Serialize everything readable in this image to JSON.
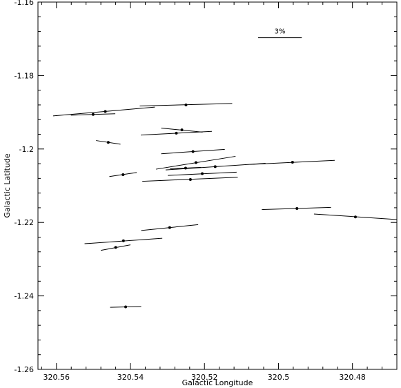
{
  "chart_data": {
    "type": "scatter",
    "xlabel": "Galactic Longitude",
    "ylabel": "Galactic Latitude",
    "xlim": [
      320.565,
      320.468
    ],
    "ylim": [
      -1.26,
      -1.16
    ],
    "x_ticks": [
      320.56,
      320.54,
      320.52,
      320.5,
      320.48
    ],
    "x_tick_labels": [
      "320.56",
      "320.54",
      "320.52",
      "320.5",
      "320.48"
    ],
    "y_ticks": [
      -1.26,
      -1.24,
      -1.22,
      -1.2,
      -1.18,
      -1.16
    ],
    "y_tick_labels": [
      "-1.26",
      "-1.24",
      "-1.22",
      "-1.2",
      "-1.18",
      "-1.16"
    ],
    "scale_bar": {
      "label": "3%",
      "x1": 320.5055,
      "x2": 320.4937,
      "y": -1.1697
    },
    "vectors": [
      {
        "x": 320.5468,
        "y": -1.1898,
        "x1": 320.5609,
        "y1": -1.191,
        "x2": 320.5334,
        "y2": -1.1886
      },
      {
        "x": 320.5501,
        "y": -1.1906,
        "x1": 320.5561,
        "y1": -1.1908,
        "x2": 320.5441,
        "y2": -1.1904
      },
      {
        "x": 320.525,
        "y": -1.188,
        "x1": 320.5375,
        "y1": -1.1883,
        "x2": 320.5125,
        "y2": -1.1876
      },
      {
        "x": 320.5261,
        "y": -1.1948,
        "x1": 320.5317,
        "y1": -1.1943,
        "x2": 320.5205,
        "y2": -1.1954
      },
      {
        "x": 320.5276,
        "y": -1.1957,
        "x1": 320.5372,
        "y1": -1.1962,
        "x2": 320.518,
        "y2": -1.1952
      },
      {
        "x": 320.546,
        "y": -1.1982,
        "x1": 320.5493,
        "y1": -1.1977,
        "x2": 320.5427,
        "y2": -1.1987
      },
      {
        "x": 320.5231,
        "y": -1.2007,
        "x1": 320.5317,
        "y1": -1.2013,
        "x2": 320.5145,
        "y2": -1.2001
      },
      {
        "x": 320.5223,
        "y": -1.2037,
        "x1": 320.5331,
        "y1": -1.2055,
        "x2": 320.5116,
        "y2": -1.202
      },
      {
        "x": 320.4962,
        "y": -1.2036,
        "x1": 320.5076,
        "y1": -1.2042,
        "x2": 320.4848,
        "y2": -1.2031
      },
      {
        "x": 320.5251,
        "y": -1.2052,
        "x1": 320.5293,
        "y1": -1.2054,
        "x2": 320.5209,
        "y2": -1.205
      },
      {
        "x": 320.5171,
        "y": -1.2048,
        "x1": 320.5305,
        "y1": -1.2057,
        "x2": 320.5035,
        "y2": -1.2039
      },
      {
        "x": 320.542,
        "y": -1.207,
        "x1": 320.5457,
        "y1": -1.2075,
        "x2": 320.5383,
        "y2": -1.2064
      },
      {
        "x": 320.5206,
        "y": -1.2067,
        "x1": 320.5299,
        "y1": -1.2072,
        "x2": 320.5113,
        "y2": -1.2063
      },
      {
        "x": 320.5238,
        "y": -1.2083,
        "x1": 320.5368,
        "y1": -1.2088,
        "x2": 320.511,
        "y2": -1.2077
      },
      {
        "x": 320.495,
        "y": -1.2162,
        "x1": 320.5045,
        "y1": -1.2165,
        "x2": 320.4858,
        "y2": -1.2159
      },
      {
        "x": 320.4792,
        "y": -1.2185,
        "x1": 320.4904,
        "y1": -1.2177,
        "x2": 320.468,
        "y2": -1.2192
      },
      {
        "x": 320.5294,
        "y": -1.2214,
        "x1": 320.5371,
        "y1": -1.2222,
        "x2": 320.5217,
        "y2": -1.2206
      },
      {
        "x": 320.5419,
        "y": -1.225,
        "x1": 320.5524,
        "y1": -1.2258,
        "x2": 320.5314,
        "y2": -1.2243
      },
      {
        "x": 320.544,
        "y": -1.2268,
        "x1": 320.548,
        "y1": -1.2276,
        "x2": 320.54,
        "y2": -1.2261
      },
      {
        "x": 320.5413,
        "y": -1.243,
        "x1": 320.5455,
        "y1": -1.2431,
        "x2": 320.5371,
        "y2": -1.2429
      }
    ]
  }
}
